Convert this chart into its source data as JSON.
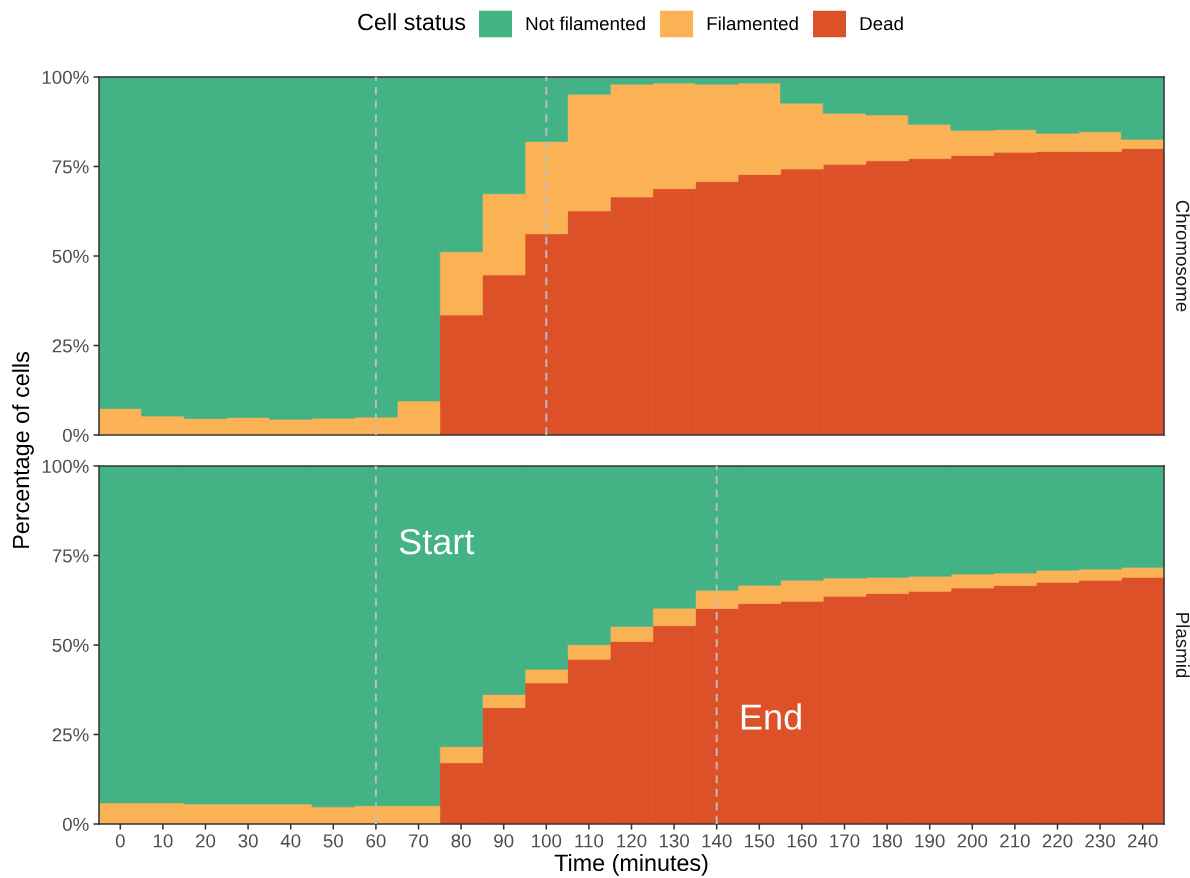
{
  "chart_data": [
    {
      "type": "bar",
      "ylabel": "Percentage of cells",
      "legend_title": "Cell status",
      "legend": "top",
      "stacked": true,
      "tick_labels": "y",
      "annotations": [
        "Chromosome"
      ],
      "x": [
        0,
        10,
        20,
        30,
        40,
        50,
        60,
        70,
        80,
        90,
        100,
        110,
        120,
        130,
        140,
        150,
        160,
        170,
        180,
        190,
        200,
        210,
        220,
        230,
        240
      ],
      "xlim": [
        -5,
        245
      ],
      "ylim": [
        0,
        100
      ],
      "yticks": [
        {
          "value": 0,
          "label": "0%"
        },
        {
          "value": 25,
          "label": "25%"
        },
        {
          "value": 50,
          "label": "50%"
        },
        {
          "value": 75,
          "label": "75%"
        },
        {
          "value": 100,
          "label": "100%"
        }
      ],
      "ref_lines": [
        {
          "axis": "x",
          "value": 60,
          "color": "#bebebe",
          "line_style": "dashed"
        },
        {
          "axis": "x",
          "value": 100,
          "color": "#bebebe",
          "line_style": "dashed"
        }
      ],
      "series": [
        {
          "name": "Dead",
          "color": "#dd5129",
          "values": [
            0,
            0,
            0,
            0,
            0,
            0,
            0,
            0,
            33.5,
            44.7,
            56.2,
            62.6,
            66.5,
            68.8,
            70.8,
            72.8,
            74.3,
            75.6,
            76.6,
            77.2,
            78.1,
            79.0,
            79.2,
            79.2,
            80.0
          ]
        },
        {
          "name": "Filamented",
          "color": "#fab255",
          "values": [
            7.4,
            5.3,
            4.6,
            4.9,
            4.4,
            4.7,
            5.0,
            9.5,
            17.7,
            22.7,
            25.8,
            32.6,
            31.5,
            29.5,
            27.2,
            25.5,
            18.4,
            14.3,
            12.8,
            9.6,
            7.0,
            6.3,
            5.1,
            5.5,
            2.6
          ]
        },
        {
          "name": "Not filamented",
          "color": "#43b284",
          "values": [
            92.6,
            94.7,
            95.4,
            95.1,
            95.6,
            95.3,
            95.0,
            90.5,
            48.8,
            32.6,
            18.0,
            4.8,
            2.0,
            1.7,
            2.0,
            1.7,
            7.3,
            10.1,
            10.6,
            13.2,
            14.9,
            14.7,
            15.7,
            15.3,
            17.4
          ]
        }
      ]
    },
    {
      "type": "bar",
      "xlabel": "Time (minutes)",
      "stacked": true,
      "x": [
        0,
        10,
        20,
        30,
        40,
        50,
        60,
        70,
        80,
        90,
        100,
        110,
        120,
        130,
        140,
        150,
        160,
        170,
        180,
        190,
        200,
        210,
        220,
        230,
        240
      ],
      "xlim": [
        -5,
        245
      ],
      "xticks": [
        0,
        10,
        20,
        30,
        40,
        50,
        60,
        70,
        80,
        90,
        100,
        110,
        120,
        130,
        140,
        150,
        160,
        170,
        180,
        190,
        200,
        210,
        220,
        230,
        240
      ],
      "ylim": [
        0,
        100
      ],
      "yticks": [
        {
          "value": 0,
          "label": "0%"
        },
        {
          "value": 25,
          "label": "25%"
        },
        {
          "value": 50,
          "label": "50%"
        },
        {
          "value": 75,
          "label": "75%"
        },
        {
          "value": 100,
          "label": "100%"
        }
      ],
      "ref_lines": [
        {
          "axis": "x",
          "value": 60,
          "color": "#bebebe",
          "line_style": "dashed"
        },
        {
          "axis": "x",
          "value": 140,
          "color": "#bebebe",
          "line_style": "dashed"
        }
      ],
      "annotations": [
        "Plasmid",
        {
          "text": "Start",
          "x": 60,
          "y": 78
        },
        {
          "text": "End",
          "x": 140,
          "y": 29
        }
      ],
      "series": [
        {
          "color": "#dd5129",
          "values": [
            0,
            0,
            0,
            0,
            0,
            0,
            0,
            0,
            17.1,
            32.5,
            39.4,
            46.0,
            51.0,
            55.4,
            60.2,
            61.6,
            62.2,
            63.6,
            64.4,
            65.0,
            65.9,
            66.6,
            67.5,
            68.1,
            68.9
          ]
        },
        {
          "color": "#fab255",
          "values": [
            5.9,
            5.9,
            5.6,
            5.6,
            5.6,
            4.8,
            5.1,
            5.1,
            4.5,
            3.7,
            3.8,
            4.1,
            4.2,
            4.9,
            5.1,
            5.1,
            5.9,
            5.1,
            4.5,
            4.2,
            3.9,
            3.5,
            3.4,
            3.1,
            2.8
          ]
        },
        {
          "color": "#43b284",
          "values": [
            94.1,
            94.1,
            94.4,
            94.4,
            94.4,
            95.2,
            94.9,
            94.9,
            78.4,
            63.8,
            56.8,
            49.9,
            44.8,
            39.7,
            34.7,
            33.3,
            31.9,
            31.3,
            31.1,
            30.8,
            30.2,
            29.9,
            29.1,
            28.8,
            28.3
          ]
        }
      ]
    }
  ]
}
